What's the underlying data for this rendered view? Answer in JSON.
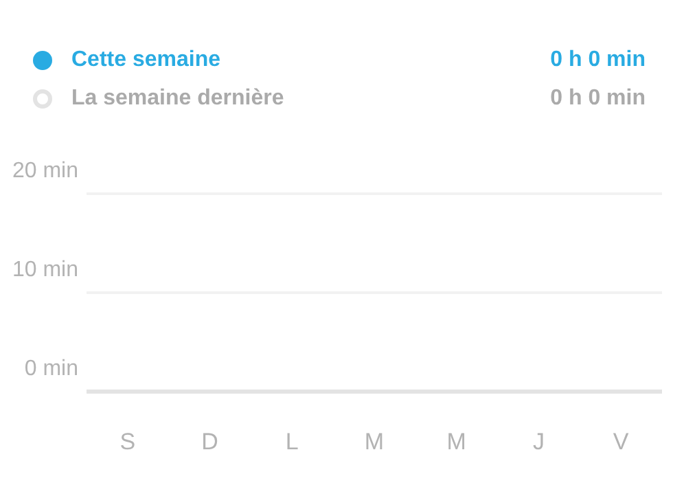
{
  "chart_data": {
    "type": "bar",
    "categories": [
      "S",
      "D",
      "L",
      "M",
      "M",
      "J",
      "V"
    ],
    "series": [
      {
        "name": "Cette semaine",
        "color": "#29abe2",
        "values": [
          0,
          0,
          0,
          0,
          0,
          0,
          0
        ]
      },
      {
        "name": "La semaine dernière",
        "color": "#e3e3e3",
        "values": [
          0,
          0,
          0,
          0,
          0,
          0,
          0
        ]
      }
    ],
    "ylim": [
      0,
      20
    ],
    "yticks": [
      {
        "value": 0,
        "label": "0 min"
      },
      {
        "value": 10,
        "label": "10 min"
      },
      {
        "value": 20,
        "label": "20 min"
      }
    ],
    "grid": "y",
    "legend": "top",
    "annotations": [
      "0 h 0 min",
      "0 h 0 min"
    ]
  }
}
